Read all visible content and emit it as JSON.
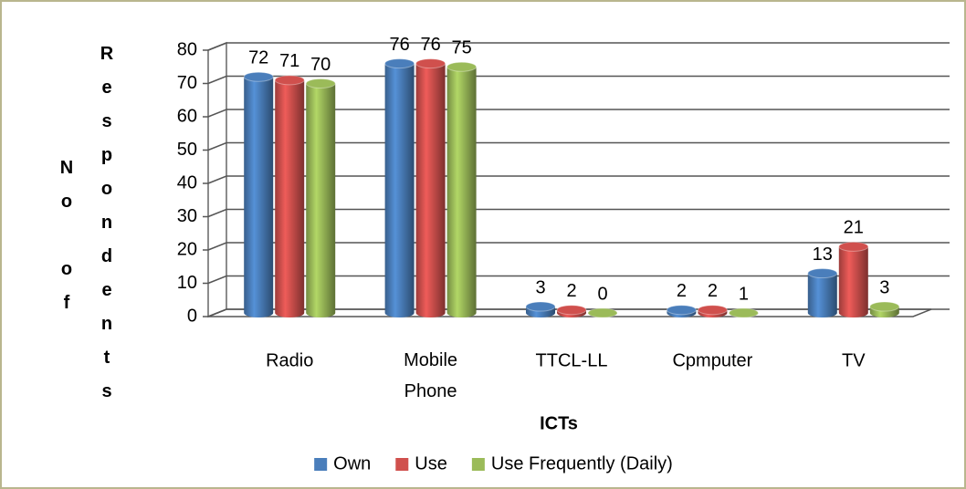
{
  "chart_data": {
    "type": "bar3d",
    "x_label": "ICTs",
    "y_label": "No of Respondents",
    "categories": [
      "Radio",
      "Mobile Phone",
      "TTCL-LL",
      "Cpmputer",
      "TV"
    ],
    "series": [
      {
        "name": "Own",
        "color": "#4a7ebb",
        "values": [
          72,
          76,
          3,
          2,
          13
        ]
      },
      {
        "name": "Use",
        "color": "#d0504d",
        "values": [
          71,
          76,
          2,
          2,
          21
        ]
      },
      {
        "name": "Use Frequently (Daily)",
        "color": "#9bbb59",
        "values": [
          70,
          75,
          0,
          1,
          3
        ]
      }
    ],
    "ylim": [
      0,
      80
    ],
    "yticks": [
      0,
      10,
      20,
      30,
      40,
      50,
      60,
      70,
      80
    ],
    "grid": true,
    "legend": "bottom"
  }
}
